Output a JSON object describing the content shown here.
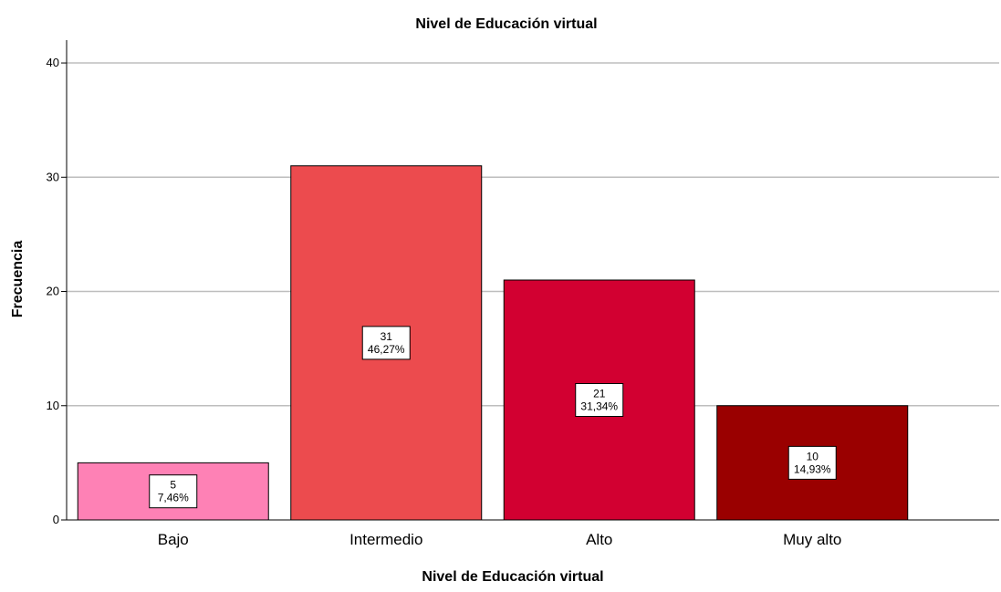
{
  "chart_data": {
    "type": "bar",
    "title": "Nivel de Educación virtual",
    "xlabel": "Nivel de Educación virtual",
    "ylabel": "Frecuencia",
    "categories": [
      "Bajo",
      "Intermedio",
      "Alto",
      "Muy alto"
    ],
    "values": [
      5,
      31,
      21,
      10
    ],
    "percent_labels": [
      "7,46%",
      "46,27%",
      "31,34%",
      "14,93%"
    ],
    "colors": [
      "#fe81b5",
      "#ec4b4e",
      "#d20031",
      "#9a0000"
    ],
    "ylim": [
      0,
      42
    ],
    "yticks": [
      0,
      10,
      20,
      30,
      40
    ],
    "grid": true,
    "legend": "none"
  }
}
